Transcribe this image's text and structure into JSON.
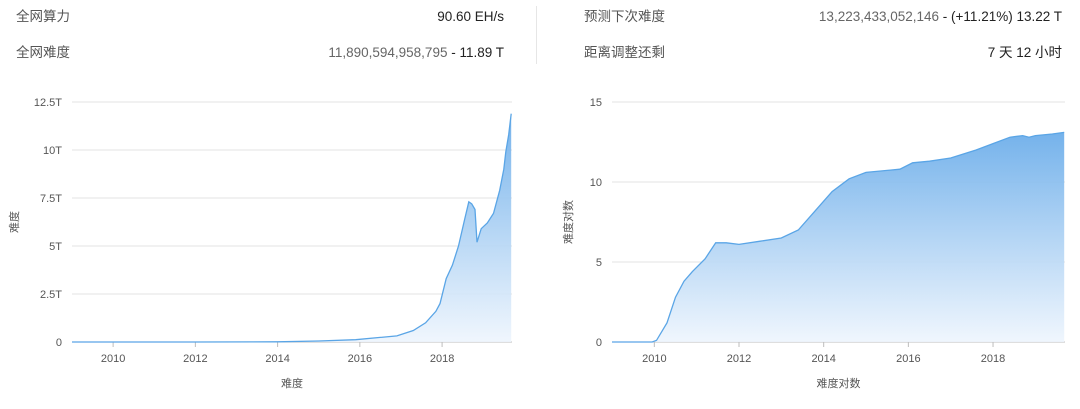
{
  "stats": {
    "hashrate": {
      "label": "全网算力",
      "value": "90.60 EH/s"
    },
    "difficulty": {
      "label": "全网难度",
      "value_main": "11,890,594,958,795",
      "value_suffix": " - 11.89 T"
    },
    "next_difficulty": {
      "label": "预测下次难度",
      "value_main": "13,223,433,052,146",
      "value_suffix": " - (+11.21%) 13.22 T"
    },
    "adjust_remaining": {
      "label": "距离调整还剩",
      "value": "7 天 12 小时"
    }
  },
  "colors": {
    "line": "#5aa5e6",
    "fill_top": "#6daeea",
    "fill_bottom": "#eef5fd",
    "grid": "#e3e3e3",
    "axis_text": "#555555"
  },
  "chart_data": [
    {
      "type": "area",
      "xlabel": "难度",
      "ylabel": "难度",
      "xlim": [
        2009.0,
        2019.7
      ],
      "ylim": [
        0,
        12.5
      ],
      "yticks": [
        0,
        2.5,
        5,
        7.5,
        10,
        12.5
      ],
      "ytick_labels": [
        "0",
        "2.5T",
        "5T",
        "7.5T",
        "10T",
        "12.5T"
      ],
      "xticks": [
        2010,
        2012,
        2014,
        2016,
        2018
      ],
      "xtick_labels": [
        "2010",
        "2012",
        "2014",
        "2016",
        "2018"
      ],
      "grid": "horizontal",
      "unit": "T",
      "x": [
        2009.0,
        2012.0,
        2014.0,
        2015.0,
        2015.9,
        2016.5,
        2016.9,
        2017.3,
        2017.6,
        2017.85,
        2017.95,
        2018.1,
        2018.25,
        2018.4,
        2018.55,
        2018.65,
        2018.72,
        2018.8,
        2018.85,
        2018.95,
        2019.1,
        2019.25,
        2019.4,
        2019.5,
        2019.55,
        2019.62,
        2019.68
      ],
      "values": [
        0,
        0.0,
        0.01,
        0.05,
        0.12,
        0.24,
        0.32,
        0.6,
        1.0,
        1.6,
        2.0,
        3.3,
        4.0,
        5.0,
        6.4,
        7.3,
        7.2,
        6.9,
        5.2,
        5.9,
        6.2,
        6.7,
        7.9,
        9.0,
        9.9,
        10.8,
        11.89
      ]
    },
    {
      "type": "area",
      "xlabel": "难度对数",
      "ylabel": "难度对数",
      "xlim": [
        2009.0,
        2019.7
      ],
      "ylim": [
        0,
        15
      ],
      "yticks": [
        0,
        5,
        10,
        15
      ],
      "ytick_labels": [
        "0",
        "5",
        "10",
        "15"
      ],
      "xticks": [
        2010,
        2012,
        2014,
        2016,
        2018
      ],
      "xtick_labels": [
        "2010",
        "2012",
        "2014",
        "2016",
        "2018"
      ],
      "grid": "horizontal",
      "x": [
        2009.0,
        2009.95,
        2010.05,
        2010.3,
        2010.5,
        2010.7,
        2010.9,
        2011.2,
        2011.45,
        2011.7,
        2012.0,
        2012.5,
        2013.0,
        2013.4,
        2013.8,
        2014.2,
        2014.6,
        2015.0,
        2015.8,
        2016.1,
        2016.5,
        2017.0,
        2017.6,
        2018.0,
        2018.4,
        2018.7,
        2018.85,
        2019.0,
        2019.4,
        2019.68
      ],
      "values": [
        0,
        0,
        0.1,
        1.2,
        2.8,
        3.8,
        4.4,
        5.2,
        6.2,
        6.2,
        6.1,
        6.3,
        6.5,
        7.0,
        8.2,
        9.4,
        10.2,
        10.6,
        10.8,
        11.2,
        11.3,
        11.5,
        12.0,
        12.4,
        12.8,
        12.9,
        12.8,
        12.9,
        13.0,
        13.1
      ]
    }
  ]
}
